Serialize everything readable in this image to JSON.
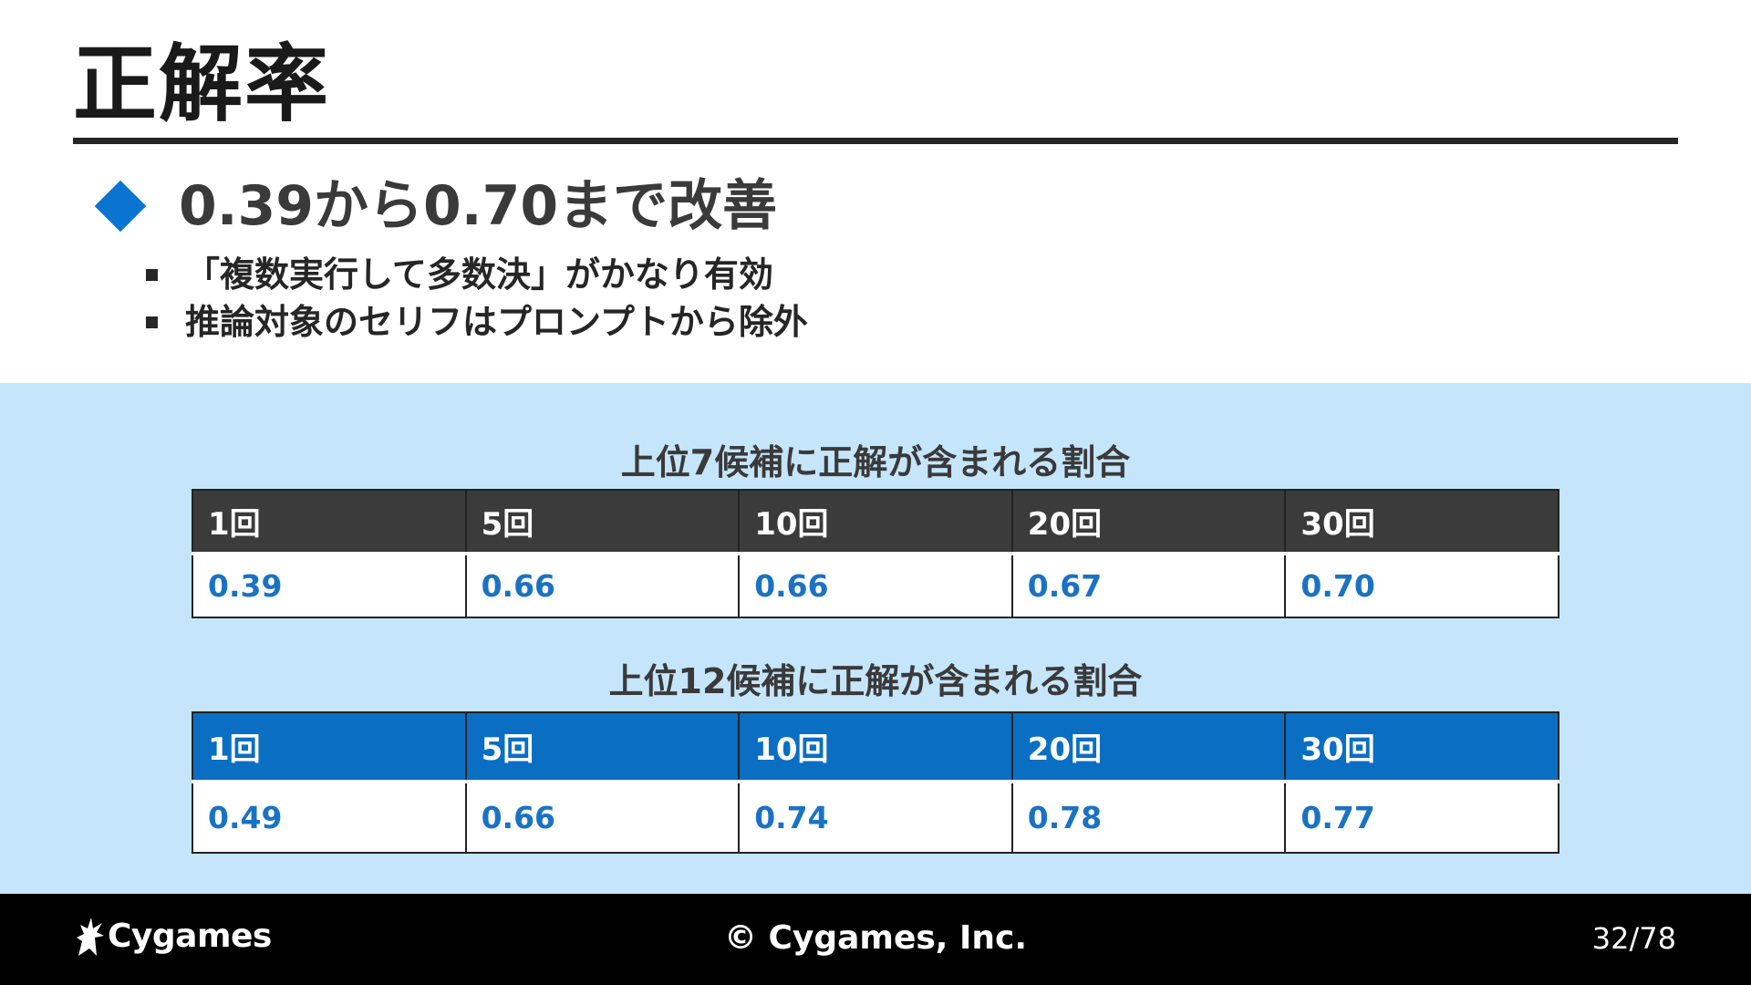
{
  "slide": {
    "title": "正解率",
    "main_bullet": "0.39から0.70まで改善",
    "sub_bullets": [
      "「複数実行して多数決」がかなり有効",
      "推論対象のセリフはプロンプトから除外"
    ]
  },
  "colors": {
    "accent": "#0b74d0",
    "panel_bg": "#c5e5fb",
    "table1_header": "#3b3b3b",
    "table2_header": "#0a6fc3",
    "value_text": "#1a72c4"
  },
  "tables": [
    {
      "caption": "上位7候補に正解が含まれる割合",
      "headers": [
        "1回",
        "5回",
        "10回",
        "20回",
        "30回"
      ],
      "values": [
        "0.39",
        "0.66",
        "0.66",
        "0.67",
        "0.70"
      ]
    },
    {
      "caption": "上位12候補に正解が含まれる割合",
      "headers": [
        "1回",
        "5回",
        "10回",
        "20回",
        "30回"
      ],
      "values": [
        "0.49",
        "0.66",
        "0.74",
        "0.78",
        "0.77"
      ]
    }
  ],
  "footer": {
    "logo_text": "Cygames",
    "logo_icon": "cygames-dragon-icon",
    "copyright": "© Cygames, Inc.",
    "page": "32/78"
  }
}
